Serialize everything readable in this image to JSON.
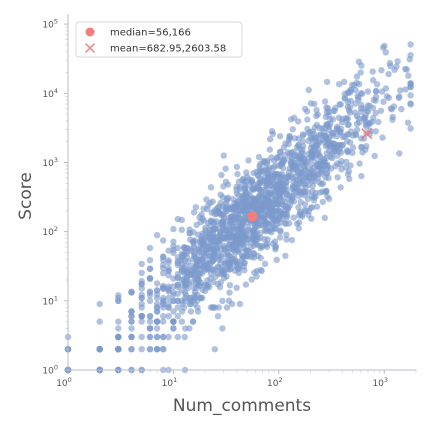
{
  "chart_data": {
    "type": "scatter",
    "title": "",
    "xlabel": "Num_comments",
    "ylabel": "Score",
    "xscale": "log",
    "yscale": "log",
    "xlim": [
      1,
      2000
    ],
    "ylim": [
      1,
      140000
    ],
    "x_major_ticks": [
      {
        "value": 1,
        "base": "10",
        "exp": "0"
      },
      {
        "value": 10,
        "base": "10",
        "exp": "1"
      },
      {
        "value": 100,
        "base": "10",
        "exp": "2"
      },
      {
        "value": 1000,
        "base": "10",
        "exp": "3"
      }
    ],
    "y_major_ticks": [
      {
        "value": 1,
        "base": "10",
        "exp": "0"
      },
      {
        "value": 10,
        "base": "10",
        "exp": "1"
      },
      {
        "value": 100,
        "base": "10",
        "exp": "2"
      },
      {
        "value": 1000,
        "base": "10",
        "exp": "3"
      },
      {
        "value": 10000,
        "base": "10",
        "exp": "4"
      },
      {
        "value": 100000,
        "base": "10",
        "exp": "5"
      }
    ],
    "grid": false,
    "legend_position": "top-left",
    "point_color": "#7b9acc",
    "marker_color": "#f08080",
    "points_sampled": {
      "note": "",
      "cluster": {
        "count": 1700,
        "x_median": 56,
        "y_median": 166,
        "slope": 1.35,
        "x_log_sd": 0.62,
        "y_noise_sd": 0.38
      }
    },
    "markers": [
      {
        "label": "median=56,166",
        "symbol": "circle",
        "x": 56,
        "y": 166
      },
      {
        "label": "mean=682.95,2603.58",
        "symbol": "x",
        "x": 682.95,
        "y": 2603.58
      }
    ]
  }
}
